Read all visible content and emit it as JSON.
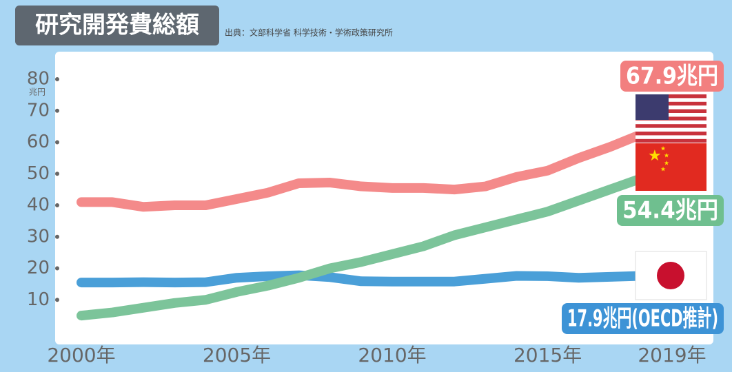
{
  "chart_data": {
    "type": "line",
    "title": "研究開発費総額",
    "source": "出典：文部科学省 科学技術・学術政策研究所",
    "y_unit": "兆円",
    "x": [
      2000,
      2001,
      2002,
      2003,
      2004,
      2005,
      2006,
      2007,
      2008,
      2009,
      2010,
      2011,
      2012,
      2013,
      2014,
      2015,
      2016,
      2017,
      2018,
      2019
    ],
    "xlim": [
      2000,
      2019
    ],
    "xticks": [
      {
        "value": 2000,
        "label": "2000年"
      },
      {
        "value": 2005,
        "label": "2005年"
      },
      {
        "value": 2010,
        "label": "2010年"
      },
      {
        "value": 2015,
        "label": "2015年"
      },
      {
        "value": 2019,
        "label": "2019年"
      }
    ],
    "ylim": [
      0,
      80
    ],
    "yticks": [
      10,
      20,
      30,
      40,
      50,
      60,
      70,
      80
    ],
    "series": [
      {
        "name": "日本",
        "color": "#4a9fd8",
        "label_color": "#3d93d6",
        "values": [
          15.5,
          15.5,
          15.6,
          15.5,
          15.6,
          17.0,
          17.5,
          17.8,
          17.2,
          15.9,
          15.8,
          15.8,
          15.8,
          16.7,
          17.6,
          17.5,
          17.0,
          17.3,
          17.6,
          17.9
        ],
        "value_labels": [
          null,
          null,
          null,
          null,
          null,
          null,
          null,
          null,
          null,
          null,
          null,
          null,
          null,
          null,
          null,
          null,
          null,
          null,
          null,
          "17.9兆円(OECD推計)"
        ]
      },
      {
        "name": "中国",
        "color": "#7cc49a",
        "label_color": "#6fbf8f",
        "values": [
          5,
          6,
          7.5,
          9,
          10,
          12.5,
          14.5,
          17,
          20,
          22,
          24.5,
          27,
          30.5,
          33,
          35.5,
          38,
          41.5,
          45,
          48.5,
          54.4
        ],
        "value_labels": [
          null,
          null,
          null,
          null,
          null,
          null,
          null,
          null,
          null,
          null,
          null,
          null,
          null,
          null,
          null,
          null,
          null,
          null,
          null,
          "54.4兆円"
        ]
      },
      {
        "name": "アメリカ",
        "color": "#f48a8a",
        "label_color": "#f27f7f",
        "values": [
          41,
          41,
          39.5,
          40,
          40,
          42,
          44,
          47,
          47.2,
          46,
          45.5,
          45.5,
          45,
          46,
          49,
          51,
          55,
          58.5,
          62.5,
          67.9
        ],
        "value_labels": [
          null,
          null,
          null,
          null,
          null,
          null,
          null,
          null,
          null,
          null,
          null,
          null,
          null,
          null,
          null,
          null,
          null,
          null,
          null,
          "67.9兆円"
        ]
      }
    ]
  }
}
